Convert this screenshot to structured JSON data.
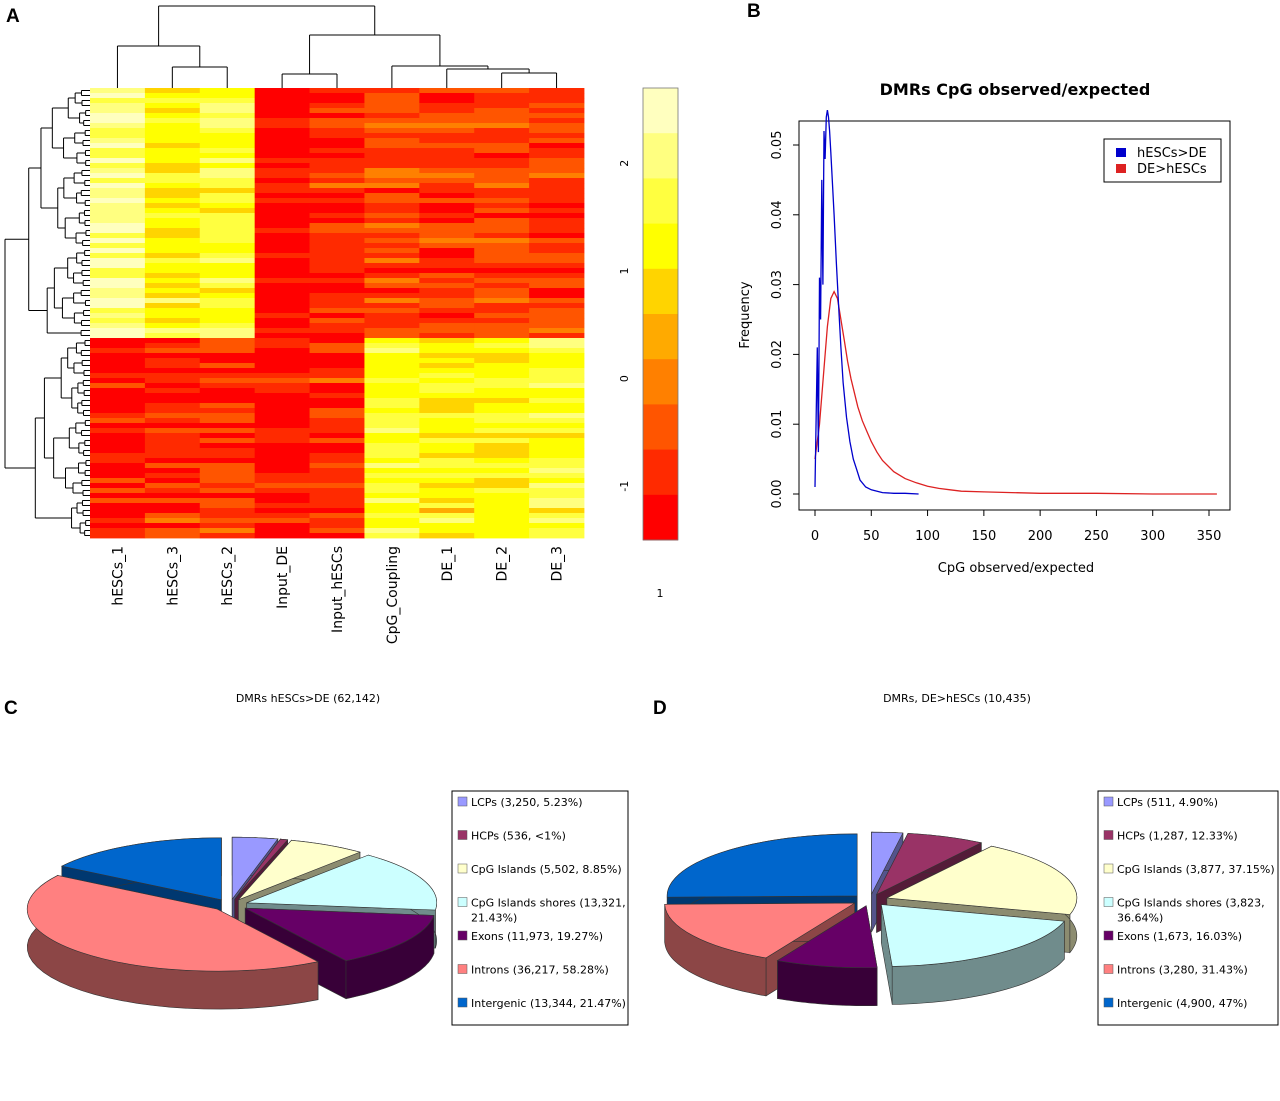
{
  "panels": {
    "a": "A",
    "b": "B",
    "c": "C",
    "d": "D"
  },
  "chart_data": [
    {
      "type": "heatmap",
      "columns": [
        "hESCs_1",
        "hESCs_3",
        "hESCs_2",
        "Input_DE",
        "Input_hESCs",
        "CpG_Coupling",
        "DE_1",
        "DE_2",
        "DE_3"
      ],
      "color_scale": {
        "ticks": [
          "2",
          "1",
          "0",
          "-1"
        ],
        "tick_values": [
          2,
          1,
          0,
          -1
        ],
        "range": [
          -1.5,
          2.7
        ],
        "footer": "1",
        "colors": [
          "#ff0000",
          "#ff2a00",
          "#ff5500",
          "#ff8000",
          "#ffaa00",
          "#ffd400",
          "#ffff00",
          "#ffff40",
          "#ffff80",
          "#ffffbf"
        ]
      },
      "row_groups": [
        {
          "rows": 50,
          "column_values": [
            2.2,
            1.3,
            1.6,
            -1.2,
            -0.9,
            -0.5,
            -0.7,
            -0.6,
            -0.7
          ]
        },
        {
          "rows": 40,
          "column_values": [
            -1.1,
            -0.9,
            -0.8,
            -1.1,
            -0.9,
            1.5,
            1.2,
            1.2,
            1.5
          ]
        }
      ]
    },
    {
      "type": "line",
      "title": "DMRs CpG observed/expected",
      "xlabel": "CpG observed/expected",
      "ylabel": "Frequency",
      "xlim": [
        0,
        360
      ],
      "ylim": [
        0,
        0.055
      ],
      "xticks": [
        "0",
        "50",
        "100",
        "150",
        "200",
        "250",
        "300",
        "350"
      ],
      "yticks": [
        "0.00",
        "0.01",
        "0.02",
        "0.03",
        "0.04",
        "0.05"
      ],
      "legend_position": "top-right",
      "series": [
        {
          "name": "hESCs>DE",
          "color": "#0000cc",
          "x": [
            0,
            2,
            3,
            4,
            5,
            6,
            7,
            8,
            9,
            10,
            11,
            12,
            13,
            14,
            15,
            17,
            19,
            21,
            23,
            25,
            28,
            31,
            34,
            37,
            40,
            45,
            50,
            60,
            70,
            80,
            92
          ],
          "y": [
            0.001,
            0.021,
            0.006,
            0.031,
            0.025,
            0.045,
            0.03,
            0.052,
            0.048,
            0.054,
            0.055,
            0.054,
            0.052,
            0.049,
            0.046,
            0.04,
            0.033,
            0.027,
            0.021,
            0.016,
            0.011,
            0.0075,
            0.005,
            0.0035,
            0.002,
            0.001,
            0.0006,
            0.0002,
            0.0001,
            0.0001,
            0.0
          ]
        },
        {
          "name": "DE>hESCs",
          "color": "#dd2222",
          "x": [
            0,
            4,
            8,
            11,
            14,
            17,
            20,
            23,
            26,
            29,
            32,
            35,
            38,
            42,
            46,
            50,
            55,
            60,
            70,
            80,
            90,
            100,
            110,
            120,
            130,
            150,
            175,
            200,
            250,
            300,
            357
          ],
          "y": [
            0.005,
            0.01,
            0.018,
            0.024,
            0.028,
            0.029,
            0.028,
            0.025,
            0.022,
            0.019,
            0.0165,
            0.0145,
            0.0125,
            0.0105,
            0.009,
            0.0075,
            0.006,
            0.0048,
            0.0032,
            0.0022,
            0.0016,
            0.0011,
            0.0008,
            0.0006,
            0.0004,
            0.0003,
            0.0002,
            0.0001,
            0.0001,
            0.0,
            0.0
          ]
        }
      ]
    },
    {
      "type": "pie",
      "title": "DMRs hESCs>DE (62,142)",
      "labels": [
        "LCPs (3,250, 5.23%)",
        "HCPs (536, <1%)",
        "CpG Islands (5,502, 8.85%)",
        "CpG Islands shores (13,321, 21.43%)",
        "Exons (11,973, 19.27%)",
        "Introns (36,217, 58.28%)",
        "Intergenic (13,344, 21.47%)"
      ],
      "values": [
        3250,
        536,
        5502,
        13321,
        11973,
        36217,
        13344
      ],
      "colors": [
        "#9999ff",
        "#993366",
        "#ffffcc",
        "#ccffff",
        "#660066",
        "#ff8080",
        "#0066cc"
      ]
    },
    {
      "type": "pie",
      "title": "DMRs, DE>hESCs (10,435)",
      "labels": [
        "LCPs (511, 4.90%)",
        "HCPs (1,287, 12.33%)",
        "CpG Islands (3,877, 37.15%)",
        "CpG Islands shores (3,823, 36.64%)",
        "Exons (1,673, 16.03%)",
        "Introns (3,280, 31.43%)",
        "Intergenic (4,900, 47%)"
      ],
      "values": [
        511,
        1287,
        3877,
        3823,
        1673,
        3280,
        4900
      ],
      "colors": [
        "#9999ff",
        "#993366",
        "#ffffcc",
        "#ccffff",
        "#660066",
        "#ff8080",
        "#0066cc"
      ]
    }
  ]
}
